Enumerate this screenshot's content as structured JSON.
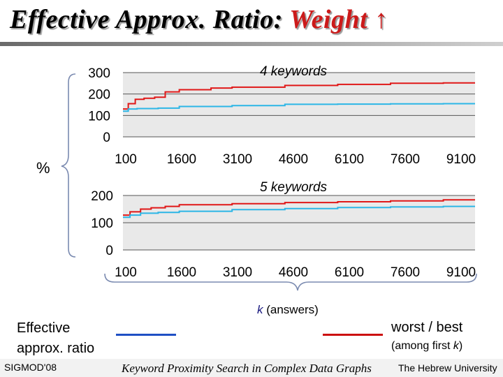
{
  "title": {
    "main": "Effective Approx. Ratio: ",
    "highlight": "Weight ↑"
  },
  "chart_data": [
    {
      "type": "line",
      "title": "4 keywords",
      "xlabel": "k (answers)",
      "ylabel": "%",
      "x_ticks": [
        "100",
        "1600",
        "3100",
        "4600",
        "6100",
        "7600",
        "9100"
      ],
      "y_ticks": [
        "300",
        "200",
        "100",
        "0"
      ],
      "xlim": [
        0,
        10000
      ],
      "ylim": [
        0,
        300
      ],
      "grid": "horizontal",
      "series": [
        {
          "color": "#e01818",
          "points": [
            [
              0,
              130
            ],
            [
              150,
              155
            ],
            [
              350,
              175
            ],
            [
              600,
              180
            ],
            [
              900,
              185
            ],
            [
              1200,
              210
            ],
            [
              1600,
              220
            ],
            [
              2500,
              228
            ],
            [
              3100,
              232
            ],
            [
              4600,
              240
            ],
            [
              6100,
              245
            ],
            [
              7600,
              250
            ],
            [
              9100,
              252
            ],
            [
              10000,
              252
            ]
          ]
        },
        {
          "color": "#2cb6e6",
          "points": [
            [
              0,
              120
            ],
            [
              150,
              130
            ],
            [
              400,
              132
            ],
            [
              1000,
              134
            ],
            [
              1600,
              142
            ],
            [
              3100,
              146
            ],
            [
              4600,
              152
            ],
            [
              6100,
              153
            ],
            [
              7600,
              154
            ],
            [
              9100,
              155
            ],
            [
              10000,
              155
            ]
          ]
        }
      ]
    },
    {
      "type": "line",
      "title": "5 keywords",
      "xlabel": "k (answers)",
      "ylabel": "%",
      "x_ticks": [
        "100",
        "1600",
        "3100",
        "4600",
        "6100",
        "7600",
        "9100"
      ],
      "y_ticks": [
        "200",
        "100",
        "0"
      ],
      "xlim": [
        0,
        10000
      ],
      "ylim": [
        0,
        200
      ],
      "grid": "horizontal",
      "series": [
        {
          "color": "#e01818",
          "points": [
            [
              0,
              128
            ],
            [
              200,
              140
            ],
            [
              500,
              150
            ],
            [
              800,
              155
            ],
            [
              1200,
              160
            ],
            [
              1600,
              166
            ],
            [
              3100,
              170
            ],
            [
              4600,
              174
            ],
            [
              6100,
              177
            ],
            [
              7600,
              180
            ],
            [
              9100,
              184
            ],
            [
              10000,
              184
            ]
          ]
        },
        {
          "color": "#2cb6e6",
          "points": [
            [
              0,
              120
            ],
            [
              200,
              128
            ],
            [
              500,
              135
            ],
            [
              1000,
              138
            ],
            [
              1600,
              142
            ],
            [
              3100,
              148
            ],
            [
              4600,
              152
            ],
            [
              6100,
              156
            ],
            [
              7600,
              158
            ],
            [
              9100,
              160
            ],
            [
              10000,
              160
            ]
          ]
        }
      ]
    }
  ],
  "y_axis_label": "%",
  "x_axis_label": {
    "var": "k",
    "text": " (answers)"
  },
  "legend": {
    "left_label_line1": "Effective",
    "left_label_line2": "approx. ratio",
    "right_label": "worst / best",
    "right_sub_prefix": "(among first ",
    "right_sub_var": "k",
    "right_sub_suffix": ")"
  },
  "footer": {
    "left": "SIGMOD'08",
    "center": "Keyword Proximity Search in Complex Data Graphs",
    "right": "The Hebrew University"
  }
}
